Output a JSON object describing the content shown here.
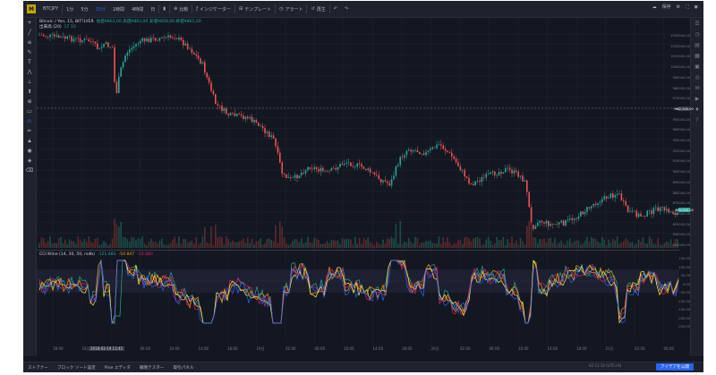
{
  "toolbar": {
    "symbol": "BTCJPY",
    "intervals": [
      "1分",
      "5分",
      "15分",
      "1時間",
      "4時間",
      "日"
    ],
    "active_interval": "15分",
    "compare": "比較",
    "indicators": "インジケーター",
    "templates": "テンプレート",
    "alert": "アラート",
    "replay": "再生"
  },
  "topright": {
    "save": "保存",
    "settings": "設定"
  },
  "legend": {
    "title": "Bitcoin / Yen, 15, BITFLYER",
    "ohlc": "始値¥863,00  高値¥864,00  安値¥858,00  終値¥861,00",
    "volume": "出来高 (20)",
    "volume_vals": "17  10"
  },
  "oscillator": {
    "label": "CCI Kline (14, 30, 50, rsdb)",
    "values": [
      "-121.483",
      "-50.847",
      "-14.880"
    ]
  },
  "price_scale": [
    "1030000.00",
    "1020000.00",
    "1010000.00",
    "1000000.00",
    "990000.00",
    "980000.00",
    "970000.00",
    "960000.00",
    "950000.00",
    "940000.00",
    "930000.00",
    "920000.00",
    "910000.00",
    "900000.00",
    "890000.00",
    "880000.00",
    "870000.00",
    "860000.00",
    "850000.00",
    "840000.00",
    "830000.00"
  ],
  "price_tags": {
    "last": "863,000.00",
    "mark": "982,500.00"
  },
  "osc_scale": [
    "150.00",
    "100.00",
    "50.00",
    "0.00",
    "-50.00",
    "-100.00",
    "-150.00",
    "-200.00",
    "-250.00"
  ],
  "time_axis": [
    "18:00",
    "18日",
    "02:00",
    "06:00",
    "10:00",
    "14:00",
    "18:00",
    "19日",
    "02:00",
    "06:00",
    "10:00",
    "14:00",
    "18:00",
    "20日",
    "02:00",
    "06:00",
    "10:00",
    "14:00",
    "18:00",
    "21日",
    "02:00",
    "06:00"
  ],
  "time_highlight": "2018-03-19 13:45",
  "bottombar": [
    "ストアナー",
    "ブロック ソート設定",
    "Pine エディタ",
    "戦略テスター",
    "取引パネル"
  ],
  "utc": "02:11:14 (UTC+9)",
  "bid_button": "アイデアを公開",
  "colors": {
    "up": "#26a69a",
    "down": "#ef5350",
    "bg": "#131722",
    "accent": "#2962ff"
  }
}
